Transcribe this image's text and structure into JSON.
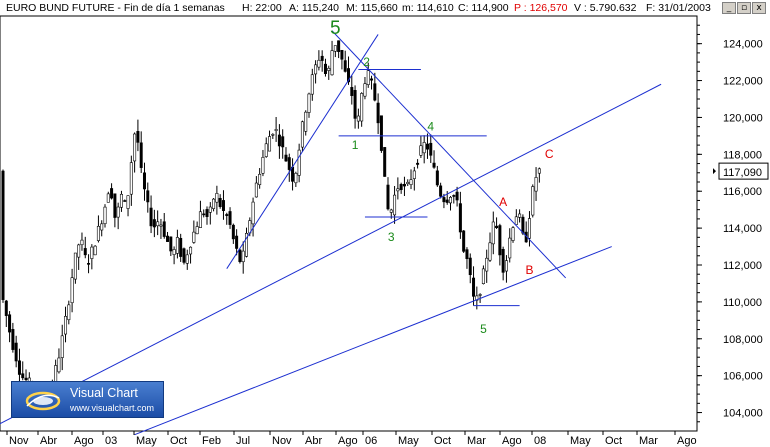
{
  "header": {
    "title": "EURO BUND FUTURE - Fin de día 1 semanas",
    "fields": [
      {
        "text": "H: 22:00",
        "color": "#000000"
      },
      {
        "text": "A: 115,240",
        "color": "#000000"
      },
      {
        "text": "M: 115,660",
        "color": "#000000"
      },
      {
        "text": "m: 114,610",
        "color": "#000000"
      },
      {
        "text": "C: 114,900",
        "color": "#000000"
      },
      {
        "text": "P : 126,570",
        "color": "#e00000"
      },
      {
        "text": "V : 5.790.632",
        "color": "#000000"
      },
      {
        "text": "F: 31/01/2003",
        "color": "#000000"
      }
    ]
  },
  "window_buttons": [
    "_",
    "▫",
    "x"
  ],
  "logo": {
    "title": "Visual Chart",
    "url": "www.visualchart.com"
  },
  "last_price_label": "117,090",
  "chart_data": {
    "type": "candlestick",
    "x_tick_labels": [
      "Nov",
      "Abr",
      "Ago",
      "03",
      "May",
      "Oct",
      "Feb",
      "Jul",
      "Nov",
      "Abr",
      "Ago",
      "06",
      "May",
      "Oct",
      "Mar",
      "Ago",
      "08",
      "May",
      "Oct",
      "Mar",
      "Ago"
    ],
    "y_tick_labels": [
      "104,000",
      "106,000",
      "108,000",
      "110,000",
      "112,000",
      "114,000",
      "116,000",
      "118,000",
      "120,000",
      "122,000",
      "124,000"
    ],
    "ylim": [
      103000,
      125500
    ],
    "price_path": [
      [
        0,
        110.5
      ],
      [
        3,
        108
      ],
      [
        6,
        106
      ],
      [
        9,
        105.5
      ],
      [
        11,
        104.8
      ],
      [
        15,
        105.2
      ],
      [
        18,
        107.5
      ],
      [
        20,
        109.5
      ],
      [
        22,
        112
      ],
      [
        24,
        113.5
      ],
      [
        26,
        112
      ],
      [
        28,
        113
      ],
      [
        31,
        114.8
      ],
      [
        33,
        116.5
      ],
      [
        35,
        114
      ],
      [
        36,
        116
      ],
      [
        38,
        115
      ],
      [
        40,
        118.5
      ],
      [
        41,
        119.8
      ],
      [
        42,
        117.5
      ],
      [
        44,
        115.5
      ],
      [
        46,
        114
      ],
      [
        48,
        114.5
      ],
      [
        50,
        113.5
      ],
      [
        52,
        112.5
      ],
      [
        54,
        113.5
      ],
      [
        55,
        111.8
      ],
      [
        57,
        113
      ],
      [
        59,
        114
      ],
      [
        61,
        115
      ],
      [
        63,
        114.5
      ],
      [
        65,
        116
      ],
      [
        67,
        115
      ],
      [
        69,
        114.5
      ],
      [
        71,
        113
      ],
      [
        73,
        112
      ],
      [
        75,
        114
      ],
      [
        77,
        116
      ],
      [
        79,
        117.5
      ],
      [
        81,
        118.8
      ],
      [
        83,
        119.5
      ],
      [
        85,
        118.5
      ],
      [
        87,
        117.5
      ],
      [
        89,
        116.5
      ],
      [
        91,
        119
      ],
      [
        93,
        121
      ],
      [
        95,
        122.5
      ],
      [
        97,
        123.5
      ],
      [
        99,
        122
      ],
      [
        101,
        124.2
      ],
      [
        103,
        123.5
      ],
      [
        105,
        122
      ],
      [
        107,
        121
      ],
      [
        108,
        119
      ],
      [
        109,
        120.8
      ],
      [
        111,
        122.5
      ],
      [
        113,
        121.5
      ],
      [
        115,
        119.5
      ],
      [
        116,
        117.5
      ],
      [
        117,
        115.5
      ],
      [
        118,
        114.5
      ],
      [
        119,
        115.5
      ],
      [
        121,
        116.5
      ],
      [
        123,
        116
      ],
      [
        125,
        117
      ],
      [
        127,
        118
      ],
      [
        129,
        118.7
      ],
      [
        131,
        117.5
      ],
      [
        133,
        116
      ],
      [
        135,
        115.5
      ],
      [
        137,
        116
      ],
      [
        139,
        115
      ],
      [
        140,
        113
      ],
      [
        141,
        112.5
      ],
      [
        142,
        112
      ],
      [
        143,
        110.5
      ],
      [
        144,
        109.8
      ],
      [
        146,
        111
      ],
      [
        148,
        113
      ],
      [
        150,
        114.5
      ],
      [
        151,
        113.5
      ],
      [
        152,
        112
      ],
      [
        153,
        111.8
      ],
      [
        155,
        114
      ],
      [
        157,
        115
      ],
      [
        159,
        113
      ],
      [
        160,
        114
      ],
      [
        161,
        115.5
      ],
      [
        162,
        116.5
      ],
      [
        163,
        117.1
      ]
    ],
    "annotations": [
      {
        "text": "5",
        "x": 101,
        "y": 124.2,
        "color": "#1a8a1a",
        "size": "large"
      },
      {
        "text": "2",
        "x": 110.5,
        "y": 122.8,
        "color": "#1a8a1a"
      },
      {
        "text": "1",
        "x": 107,
        "y": 118.3,
        "color": "#1a8a1a"
      },
      {
        "text": "4",
        "x": 130,
        "y": 119.3,
        "color": "#1a8a1a"
      },
      {
        "text": "3",
        "x": 118,
        "y": 113.3,
        "color": "#1a8a1a"
      },
      {
        "text": "5",
        "x": 146,
        "y": 108.3,
        "color": "#1a8a1a"
      },
      {
        "text": "A",
        "x": 152,
        "y": 115.2,
        "color": "#e00000"
      },
      {
        "text": "B",
        "x": 160,
        "y": 111.5,
        "color": "#e00000"
      },
      {
        "text": "C",
        "x": 166,
        "y": 117.8,
        "color": "#e00000"
      }
    ],
    "trendlines": [
      {
        "x1": -2,
        "y1": 103.3,
        "x2": 200,
        "y2": 121.8
      },
      {
        "x1": 40,
        "y1": 102.8,
        "x2": 185,
        "y2": 113.0
      },
      {
        "x1": 68,
        "y1": 111.8,
        "x2": 114,
        "y2": 124.5
      },
      {
        "x1": 100,
        "y1": 124.7,
        "x2": 171,
        "y2": 111.3
      },
      {
        "x1": 108,
        "y1": 122.6,
        "x2": 127,
        "y2": 122.6
      },
      {
        "x1": 102,
        "y1": 119.0,
        "x2": 147,
        "y2": 119.0
      },
      {
        "x1": 110,
        "y1": 114.6,
        "x2": 129,
        "y2": 114.6
      },
      {
        "x1": 143,
        "y1": 109.8,
        "x2": 157,
        "y2": 109.8
      }
    ],
    "grid": false
  }
}
